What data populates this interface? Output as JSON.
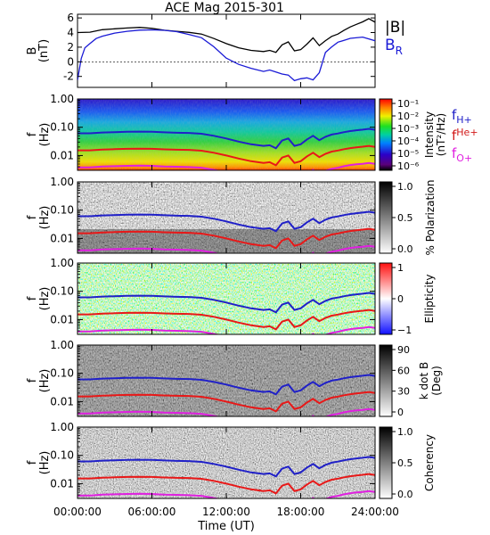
{
  "chart_data": [
    {
      "panel": "B",
      "type": "line",
      "title": "ACE Mag 2015-301",
      "ylabel": "B",
      "yunit": "(nT)",
      "ylim": [
        -3.5,
        6.5
      ],
      "yticks": [
        "6",
        "4",
        "2",
        "0",
        "-2"
      ],
      "xlim": [
        0,
        24
      ],
      "legend": [
        {
          "label": "|B|",
          "color": "#000000"
        },
        {
          "label": "B",
          "sub": "R",
          "color": "#1a1ad6"
        }
      ],
      "series": [
        {
          "name": "|B|",
          "color": "#000000",
          "x": [
            0,
            1,
            2,
            3,
            4,
            5,
            6,
            7,
            8,
            9,
            10,
            11,
            12,
            13,
            14,
            15,
            15.5,
            16,
            16.5,
            17,
            17.5,
            18,
            18.5,
            19,
            19.5,
            20,
            20.5,
            21,
            21.5,
            22,
            22.5,
            23,
            23.5,
            24
          ],
          "y": [
            4.0,
            4.0,
            4.3,
            4.4,
            4.5,
            4.6,
            4.5,
            4.3,
            4.2,
            4.1,
            3.9,
            3.3,
            2.6,
            2.0,
            1.6,
            1.4,
            1.5,
            1.2,
            2.2,
            2.6,
            1.4,
            1.6,
            2.4,
            3.3,
            2.3,
            3.0,
            3.6,
            3.9,
            4.4,
            4.8,
            5.1,
            5.4,
            5.8,
            5.3
          ]
        },
        {
          "name": "B",
          "color": "#1a1ad6",
          "x": [
            0,
            0.3,
            0.6,
            1,
            1.5,
            2,
            3,
            4,
            5,
            6,
            7,
            8,
            9,
            10,
            11,
            12,
            13,
            14,
            15,
            15.5,
            16,
            16.5,
            17,
            17.5,
            18,
            18.5,
            19,
            19.5,
            20,
            20.5,
            21,
            21.5,
            22,
            23,
            24
          ],
          "y": [
            -2.5,
            0.5,
            2.0,
            2.6,
            3.3,
            3.6,
            4.0,
            4.2,
            4.3,
            4.3,
            4.2,
            4.0,
            3.6,
            3.2,
            2.0,
            0.5,
            -0.3,
            -0.8,
            -1.2,
            -1.0,
            -1.3,
            -1.6,
            -1.8,
            -2.6,
            -2.4,
            -2.3,
            -2.6,
            -1.6,
            1.2,
            2.0,
            2.7,
            3.0,
            3.3,
            3.5,
            3.0
          ]
        }
      ]
    },
    {
      "panel": "intensity",
      "type": "heatmap",
      "ylabel": "f",
      "yunit": "(Hz)",
      "ylim": [
        0.003,
        1.0
      ],
      "yscale": "log",
      "yticks": [
        "1.00",
        "0.10",
        "0.01"
      ],
      "xlim": [
        0,
        24
      ],
      "colorbar": {
        "label": "Intensity",
        "unit": "(nT²/Hz)",
        "scale": "rainbow",
        "ticks": [
          "10⁻¹",
          "10⁻²",
          "10⁻³",
          "10⁻⁴",
          "10⁻⁵",
          "10⁻⁶"
        ]
      },
      "legend": [
        {
          "label": "f",
          "sub": "H+",
          "color": "#2020c8"
        },
        {
          "label": "f",
          "sub": "He+",
          "color": "#d21a1a"
        },
        {
          "label": "f",
          "sub": "O+",
          "color": "#e020e0"
        }
      ]
    },
    {
      "panel": "polarization",
      "type": "heatmap",
      "ylabel": "f",
      "yunit": "(Hz)",
      "ylim": [
        0.003,
        1.0
      ],
      "yscale": "log",
      "yticks": [
        "1.00",
        "0.10",
        "0.01"
      ],
      "xlim": [
        0,
        24
      ],
      "colorbar": {
        "label": "% Polarization",
        "unit": "",
        "scale": "gray",
        "ticks": [
          "1.0",
          "0.5",
          "0.0"
        ]
      }
    },
    {
      "panel": "ellipticity",
      "type": "heatmap",
      "ylabel": "f",
      "yunit": "(Hz)",
      "ylim": [
        0.003,
        1.0
      ],
      "yscale": "log",
      "yticks": [
        "1.00",
        "0.10",
        "0.01"
      ],
      "xlim": [
        0,
        24
      ],
      "colorbar": {
        "label": "Ellipticity",
        "unit": "",
        "scale": "diverging",
        "ticks": [
          "1",
          "0",
          "−1"
        ]
      }
    },
    {
      "panel": "kdotb",
      "type": "heatmap",
      "ylabel": "f",
      "yunit": "(Hz)",
      "ylim": [
        0.003,
        1.0
      ],
      "yscale": "log",
      "yticks": [
        "1.00",
        "0.10",
        "0.01"
      ],
      "xlim": [
        0,
        24
      ],
      "colorbar": {
        "label": "k dot B",
        "unit": "(Deg)",
        "scale": "gray",
        "ticks": [
          "90",
          "60",
          "30",
          "0"
        ]
      }
    },
    {
      "panel": "coherency",
      "type": "heatmap",
      "ylabel": "f",
      "yunit": "(Hz)",
      "ylim": [
        0.003,
        1.0
      ],
      "yscale": "log",
      "yticks": [
        "1.00",
        "0.10",
        "0.01"
      ],
      "xlim": [
        0,
        24
      ],
      "colorbar": {
        "label": "Coherency",
        "unit": "",
        "scale": "gray",
        "ticks": [
          "1.0",
          "0.5",
          "0.0"
        ]
      }
    }
  ],
  "gyro": {
    "x": [
      0,
      1,
      2,
      3,
      4,
      5,
      6,
      7,
      8,
      9,
      10,
      11,
      12,
      13,
      14,
      15,
      15.5,
      16,
      16.5,
      17,
      17.5,
      18,
      18.5,
      19,
      19.5,
      20,
      20.5,
      21,
      21.5,
      22,
      22.5,
      23,
      23.5,
      24
    ],
    "f_H": [
      0.061,
      0.061,
      0.065,
      0.067,
      0.069,
      0.07,
      0.069,
      0.066,
      0.064,
      0.063,
      0.059,
      0.05,
      0.04,
      0.031,
      0.025,
      0.022,
      0.023,
      0.018,
      0.034,
      0.04,
      0.022,
      0.025,
      0.037,
      0.05,
      0.035,
      0.046,
      0.055,
      0.06,
      0.067,
      0.073,
      0.078,
      0.082,
      0.088,
      0.081
    ],
    "f_He": [
      0.0153,
      0.0153,
      0.0163,
      0.0168,
      0.0173,
      0.0175,
      0.0173,
      0.0165,
      0.016,
      0.0158,
      0.0148,
      0.0125,
      0.01,
      0.0078,
      0.0063,
      0.0055,
      0.0058,
      0.0045,
      0.0085,
      0.01,
      0.0055,
      0.0063,
      0.0093,
      0.0125,
      0.0088,
      0.0115,
      0.0138,
      0.015,
      0.0168,
      0.0183,
      0.0195,
      0.0205,
      0.022,
      0.0203
    ],
    "f_O": [
      0.0038,
      0.0038,
      0.0041,
      0.0042,
      0.0043,
      0.0044,
      0.0043,
      0.0041,
      0.004,
      0.0039,
      0.0037,
      0.0031,
      0.0025,
      0.0019,
      0.0016,
      0.0014,
      0.0015,
      0.0011,
      0.0021,
      0.0025,
      0.0014,
      0.0016,
      0.0023,
      0.0031,
      0.0022,
      0.0029,
      0.0034,
      0.0037,
      0.0042,
      0.0046,
      0.0049,
      0.0051,
      0.0055,
      0.0051
    ]
  },
  "xaxis": {
    "ticks": [
      "00:00:00",
      "06:00:00",
      "12:00:00",
      "18:00:00",
      "24:00:00"
    ],
    "tick_values": [
      0,
      6,
      12,
      18,
      24
    ],
    "label": "Time (UT)"
  }
}
